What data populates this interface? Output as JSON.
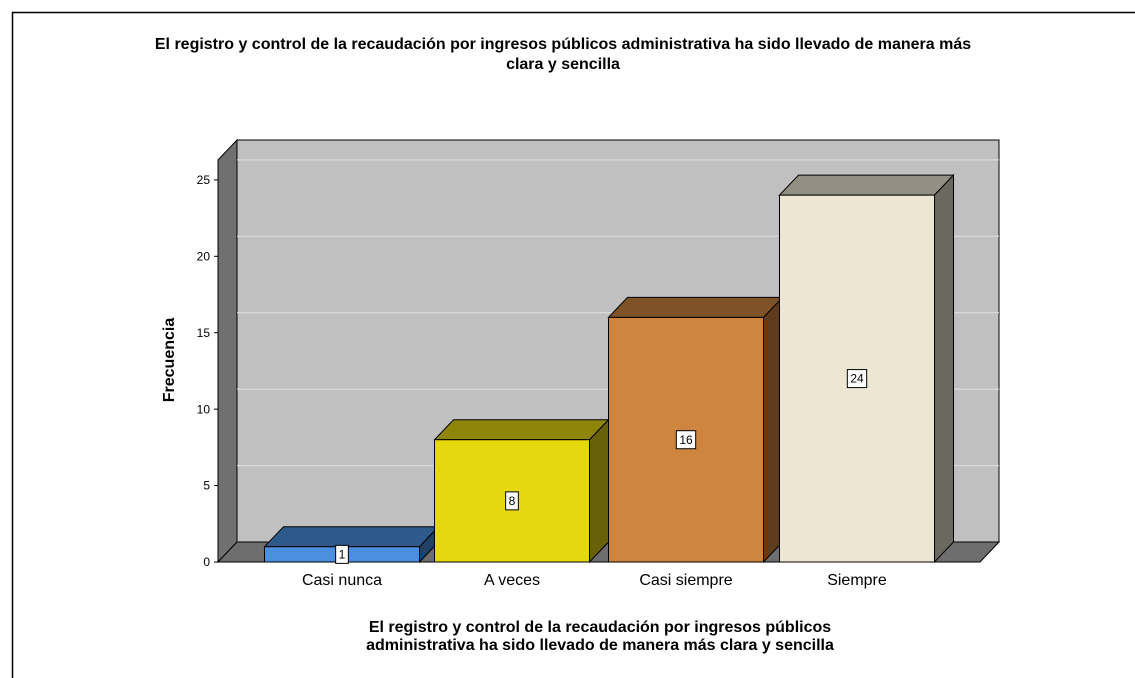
{
  "chart_data": {
    "type": "bar3d",
    "title": [
      "El registro y control de la recaudación por ingresos públicos administrativa ha sido llevado de manera más",
      "clara y sencilla"
    ],
    "categories": [
      "Casi nunca",
      "A veces",
      "Casi siempre",
      "Siempre"
    ],
    "values": [
      1,
      8,
      16,
      24
    ],
    "colors": [
      "#4a8fe0",
      "#e6d80f",
      "#cd853f",
      "#ede6d2"
    ],
    "ylabel": "Frecuencia",
    "xlabel": [
      "El registro y control de la recaudación por ingresos públicos",
      "administrativa ha sido llevado de manera más clara y sencilla"
    ],
    "ylim": [
      0,
      26.3
    ],
    "yticks": [
      0,
      5,
      10,
      15,
      20,
      25
    ],
    "grid": true
  }
}
